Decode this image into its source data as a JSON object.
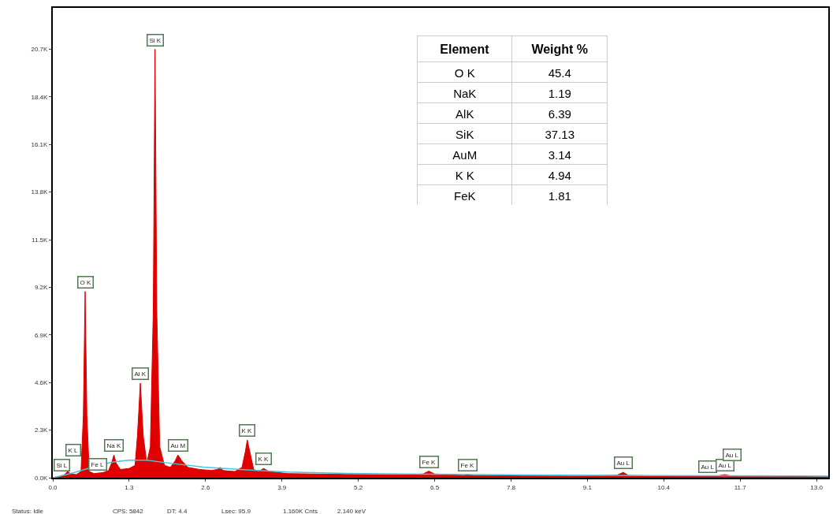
{
  "chart_data": {
    "type": "area",
    "xlim": [
      0,
      13.2
    ],
    "ylim": [
      0,
      22700
    ],
    "xticks": [
      {
        "value": 0,
        "label": "0.0"
      },
      1.3,
      2.6,
      3.9,
      5.2,
      6.5,
      7.8,
      9.1,
      10.4,
      11.7,
      {
        "value": 13,
        "label": "13.0"
      }
    ],
    "yticks": [
      {
        "value": 0,
        "label": "0.0K"
      },
      {
        "value": 2300,
        "label": "2.3K"
      },
      {
        "value": 4600,
        "label": "4.6K"
      },
      {
        "value": 6900,
        "label": "6.9K"
      },
      {
        "value": 9200,
        "label": "9.2K"
      },
      {
        "value": 11500,
        "label": "11.5K"
      },
      {
        "value": 13800,
        "label": "13.8K"
      },
      {
        "value": 16100,
        "label": "16.1K"
      },
      {
        "value": 18400,
        "label": "18.4K"
      },
      {
        "value": 20700,
        "label": "20.7K"
      }
    ],
    "series": [
      {
        "color": "#e00000",
        "x": [
          0.0,
          0.1,
          0.2,
          0.25,
          0.3,
          0.4,
          0.48,
          0.52,
          0.55,
          0.58,
          0.62,
          0.7,
          0.85,
          0.95,
          1.0,
          1.04,
          1.08,
          1.15,
          1.3,
          1.4,
          1.44,
          1.49,
          1.54,
          1.6,
          1.66,
          1.71,
          1.74,
          1.77,
          1.82,
          1.9,
          2.0,
          2.08,
          2.13,
          2.2,
          2.3,
          2.5,
          2.7,
          2.8,
          2.85,
          2.9,
          3.1,
          3.22,
          3.28,
          3.31,
          3.35,
          3.42,
          3.5,
          3.59,
          3.68,
          4.0,
          5.0,
          6.0,
          6.3,
          6.4,
          6.5,
          7.0,
          7.06,
          7.15,
          8.0,
          9.0,
          9.6,
          9.71,
          9.8,
          10.5,
          11.3,
          11.44,
          11.55,
          12.5,
          13.2
        ],
        "values": [
          0,
          50,
          150,
          300,
          200,
          150,
          300,
          3000,
          9000,
          3000,
          300,
          200,
          250,
          350,
          700,
          1100,
          700,
          400,
          450,
          600,
          2000,
          4570,
          2000,
          700,
          1500,
          8000,
          20700,
          8000,
          1500,
          600,
          500,
          800,
          1100,
          800,
          500,
          400,
          350,
          400,
          500,
          350,
          300,
          500,
          1300,
          1830,
          1300,
          400,
          300,
          450,
          300,
          200,
          160,
          140,
          180,
          320,
          180,
          110,
          160,
          110,
          90,
          80,
          120,
          260,
          110,
          80,
          80,
          150,
          80,
          60,
          50
        ]
      },
      {
        "type": "line",
        "color": "#40c8d8",
        "x": [
          0.0,
          0.3,
          0.6,
          1.0,
          1.3,
          1.6,
          2.0,
          2.6,
          3.3,
          4.0,
          5.0,
          6.5,
          8.0,
          10.0,
          13.2
        ],
        "values": [
          0,
          200,
          450,
          750,
          850,
          850,
          700,
          500,
          380,
          280,
          210,
          170,
          130,
          100,
          80
        ]
      }
    ],
    "annotations": [
      {
        "text": "Si L",
        "x": 0.16,
        "y": 150
      },
      {
        "text": "K L",
        "x": 0.35,
        "y": 300
      },
      {
        "text": "O K",
        "x": 0.55,
        "y": 9000
      },
      {
        "text": "Fe L",
        "x": 0.76,
        "y": 200
      },
      {
        "text": "Na K",
        "x": 1.04,
        "y": 1100
      },
      {
        "text": "Al K",
        "x": 1.49,
        "y": 4570
      },
      {
        "text": "Si K",
        "x": 1.74,
        "y": 20700
      },
      {
        "text": "Au M",
        "x": 2.13,
        "y": 1100
      },
      {
        "text": "K K",
        "x": 3.31,
        "y": 1830
      },
      {
        "text": "K K",
        "x": 3.59,
        "y": 450
      },
      {
        "text": "Fe K",
        "x": 6.4,
        "y": 320
      },
      {
        "text": "Fe K",
        "x": 7.06,
        "y": 160
      },
      {
        "text": "Au L",
        "x": 9.71,
        "y": 260
      },
      {
        "text": "Au L",
        "x": 11.15,
        "y": 80
      },
      {
        "text": "Au L",
        "x": 11.44,
        "y": 150
      },
      {
        "text": "Au L",
        "x": 11.57,
        "y": 80
      },
      "Element",
      "Weight %",
      "O K",
      "45.4",
      "NaK",
      "1.19",
      "AlK",
      "6.39",
      "SiK",
      "37.13",
      "AuM",
      "3.14",
      "K K",
      "4.94",
      "FeK",
      "1.81",
      "Status: Idle",
      "CPS: 5842",
      "DT: 4.4",
      "Lsec: 95.9",
      "1.160K Cnts",
      "2.140 keV"
    ]
  }
}
